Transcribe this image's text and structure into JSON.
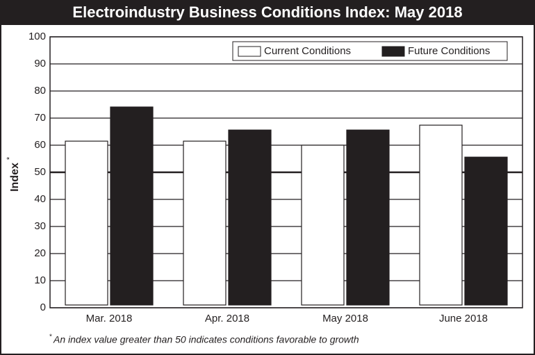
{
  "chart_data": {
    "type": "bar",
    "title": "Electroindustry Business Conditions Index: May 2018",
    "ylabel": "Index",
    "ylabel_marker": "*",
    "footnote_marker": "*",
    "footnote": "An index value greater than 50 indicates conditions favorable to growth",
    "categories": [
      "Mar. 2018",
      "Apr. 2018",
      "May 2018",
      "June 2018"
    ],
    "series": [
      {
        "name": "Current Conditions",
        "color": "#ffffff",
        "values": [
          61.5,
          61.5,
          60,
          67.4
        ]
      },
      {
        "name": "Future Conditions",
        "color": "#231f20",
        "values": [
          74.1,
          65.6,
          65.6,
          55.6
        ]
      }
    ],
    "ylim": [
      0,
      100
    ],
    "yticks": [
      0,
      10,
      20,
      30,
      40,
      50,
      60,
      70,
      80,
      90,
      100
    ],
    "grid": true,
    "emphasized_tick": 50,
    "legend": "top-right"
  }
}
